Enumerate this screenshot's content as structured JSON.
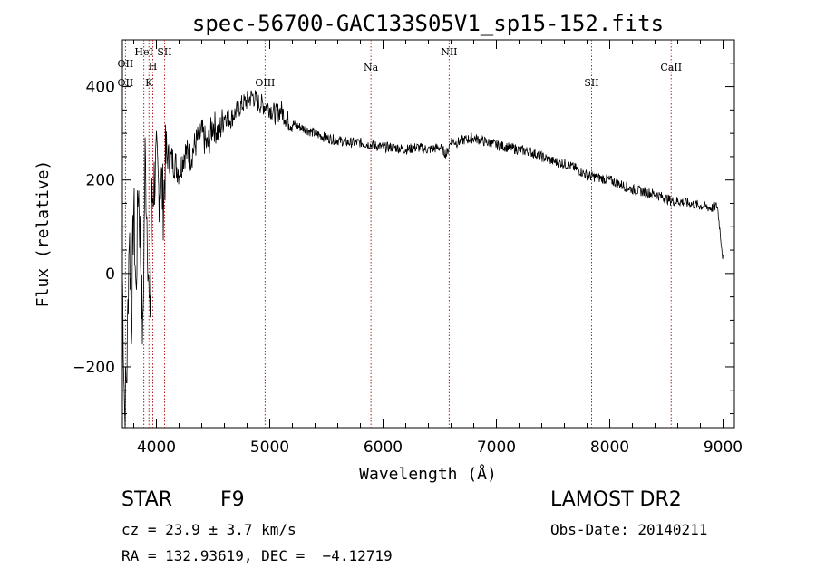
{
  "chart_data": {
    "type": "line",
    "title": "spec-56700-GAC133S05V1_sp15-152.fits",
    "xlabel": "Wavelength (Å)",
    "ylabel": "Flux (relative)",
    "xlim": [
      3700,
      9100
    ],
    "ylim": [
      -330,
      500
    ],
    "xticks": [
      "4000",
      "5000",
      "6000",
      "7000",
      "8000",
      "9000"
    ],
    "yticks": [
      "−200",
      "0",
      "200",
      "400"
    ],
    "grid": false,
    "series": [
      {
        "x": [
          3700,
          3720,
          3740,
          3760,
          3780,
          3800,
          3820,
          3840,
          3860,
          3880,
          3900,
          3920,
          3940,
          3960,
          3980,
          4000,
          4020,
          4040,
          4060,
          4080,
          4100,
          4150,
          4200,
          4250,
          4300,
          4350,
          4400,
          4450,
          4500,
          4550,
          4600,
          4650,
          4700,
          4750,
          4800,
          4850,
          4900,
          4950,
          5000,
          5050,
          5100,
          5150,
          5200,
          5300,
          5400,
          5500,
          5600,
          5700,
          5800,
          5900,
          6000,
          6100,
          6200,
          6300,
          6400,
          6500,
          6560,
          6600,
          6650,
          6700,
          6800,
          6900,
          7000,
          7100,
          7200,
          7300,
          7400,
          7500,
          7600,
          7700,
          7800,
          7900,
          8000,
          8100,
          8200,
          8300,
          8400,
          8500,
          8550,
          8600,
          8700,
          8800,
          8900,
          8950,
          9000
        ],
        "y": [
          0,
          -300,
          -200,
          100,
          -100,
          150,
          -50,
          200,
          50,
          -150,
          250,
          100,
          -120,
          150,
          200,
          230,
          180,
          210,
          150,
          240,
          250,
          240,
          220,
          260,
          250,
          280,
          300,
          270,
          320,
          300,
          340,
          330,
          345,
          360,
          370,
          380,
          365,
          360,
          355,
          340,
          350,
          330,
          320,
          310,
          300,
          290,
          285,
          280,
          280,
          275,
          270,
          270,
          265,
          270,
          265,
          270,
          255,
          285,
          280,
          285,
          290,
          282,
          275,
          270,
          265,
          260,
          250,
          240,
          235,
          225,
          210,
          205,
          200,
          190,
          180,
          175,
          170,
          160,
          155,
          155,
          150,
          145,
          140,
          145,
          30
        ]
      }
    ],
    "lines": [
      {
        "label": "OII",
        "x": 3727
      },
      {
        "label": "OII",
        "x": 3727
      },
      {
        "label": "HeI",
        "x": 3889
      },
      {
        "label": "H",
        "x": 3968
      },
      {
        "label": "K",
        "x": 3934
      },
      {
        "label": "SII",
        "x": 4072
      },
      {
        "label": "OIII",
        "x": 4959
      },
      {
        "label": "Na",
        "x": 5893
      },
      {
        "label": "NII",
        "x": 6583
      },
      {
        "label": "SII",
        "x": 7840
      },
      {
        "label": "CaII",
        "x": 8542
      }
    ]
  },
  "info": {
    "object_class": "STAR",
    "subclass": "F9",
    "survey": "LAMOST DR2",
    "cz": "cz = 23.9 ± 3.7 km/s",
    "obs_date": "Obs-Date: 20140211",
    "coords": "RA = 132.93619, DEC =  −4.12719"
  }
}
